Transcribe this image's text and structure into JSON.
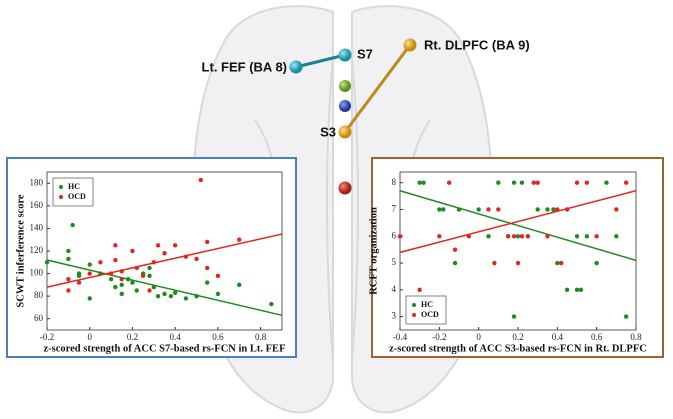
{
  "brain": {
    "labels": [
      "S7",
      "Lt. FEF (BA 8)",
      "Rt. DLPFC (BA 9)",
      "S3"
    ]
  },
  "chart_data": [
    {
      "type": "scatter",
      "xlabel": "z-scored strength of ACC S7-based rs-FCN in Lt. FEF",
      "ylabel": "SCWT inferference score",
      "xlim": [
        -0.2,
        0.9
      ],
      "xticks": [
        -0.2,
        0,
        0.2,
        0.4,
        0.6,
        0.8
      ],
      "ylim": [
        50,
        190
      ],
      "yticks": [
        60,
        80,
        100,
        120,
        140,
        160,
        180
      ],
      "legend": "upper left",
      "series": [
        {
          "name": "HC",
          "color": "#1f8a1f",
          "x": [
            -0.2,
            -0.1,
            -0.1,
            -0.05,
            -0.05,
            0,
            0,
            -0.08,
            0.05,
            0.1,
            0.12,
            0.15,
            0.15,
            0.18,
            0.2,
            0.22,
            0.25,
            0.28,
            0.28,
            0.3,
            0.32,
            0.35,
            0.38,
            0.4,
            0.45,
            0.5,
            0.55,
            0.6,
            0.7,
            0.85
          ],
          "values": [
            110,
            120,
            113,
            100,
            98,
            78,
            108,
            143,
            100,
            95,
            88,
            82,
            90,
            95,
            92,
            85,
            100,
            105,
            98,
            88,
            80,
            82,
            80,
            83,
            78,
            80,
            92,
            82,
            90,
            73
          ],
          "fit_x": [
            -0.2,
            0.9
          ],
          "fit_values": [
            112,
            63
          ]
        },
        {
          "name": "OCD",
          "color": "#e0261e",
          "x": [
            -0.1,
            -0.1,
            -0.05,
            0,
            0.05,
            0.1,
            0.12,
            0.15,
            0.15,
            0.2,
            0.22,
            0.25,
            0.28,
            0.3,
            0.32,
            0.35,
            0.4,
            0.45,
            0.5,
            0.52,
            0.55,
            0.55,
            0.6,
            0.7,
            0.12
          ],
          "values": [
            95,
            85,
            92,
            100,
            110,
            100,
            112,
            102,
            95,
            120,
            105,
            98,
            85,
            110,
            125,
            118,
            125,
            115,
            113,
            183,
            128,
            105,
            98,
            130,
            125
          ],
          "fit_x": [
            -0.2,
            0.9
          ],
          "fit_values": [
            88,
            135
          ]
        }
      ]
    },
    {
      "type": "scatter",
      "xlabel": "z-scored strength of ACC S3-based rs-FCN in Rt. DLPFC",
      "ylabel": "RCFT organization",
      "xlim": [
        -0.4,
        0.8
      ],
      "xticks": [
        -0.4,
        -0.2,
        0,
        0.2,
        0.4,
        0.6,
        0.8
      ],
      "ylim": [
        2.5,
        8.4
      ],
      "yticks": [
        3,
        4,
        5,
        6,
        7,
        8
      ],
      "legend": "lower left",
      "series": [
        {
          "name": "HC",
          "color": "#1f8a1f",
          "x": [
            -0.3,
            -0.28,
            -0.2,
            -0.18,
            -0.1,
            0,
            0.05,
            0.1,
            0.15,
            0.18,
            0.2,
            0.22,
            0.25,
            0.3,
            0.35,
            0.38,
            0.4,
            0.45,
            0.5,
            0.5,
            0.52,
            0.55,
            0.6,
            0.65,
            0.7,
            0.75,
            0.18,
            -0.12
          ],
          "values": [
            8,
            8,
            7,
            7,
            7,
            7,
            6,
            8,
            6,
            8,
            6,
            8,
            6,
            7,
            7,
            7,
            5,
            4,
            6,
            4,
            4,
            6,
            5,
            8,
            6,
            3,
            3,
            5
          ],
          "fit_x": [
            -0.4,
            0.8
          ],
          "fit_values": [
            7.7,
            5.1
          ]
        },
        {
          "name": "OCD",
          "color": "#e0261e",
          "x": [
            -0.4,
            -0.3,
            -0.2,
            -0.15,
            -0.12,
            -0.05,
            0.05,
            0.08,
            0.1,
            0.15,
            0.18,
            0.2,
            0.22,
            0.25,
            0.28,
            0.3,
            0.35,
            0.4,
            0.42,
            0.45,
            0.5,
            0.55,
            0.6,
            0.7,
            0.75
          ],
          "values": [
            6,
            4,
            6,
            8,
            5.5,
            6,
            7,
            5,
            7,
            6,
            6,
            5,
            6,
            6,
            8,
            8,
            6,
            7,
            5,
            7,
            8,
            8,
            6,
            7,
            8
          ],
          "fit_x": [
            -0.4,
            0.8
          ],
          "fit_values": [
            5.4,
            7.7
          ]
        }
      ]
    }
  ]
}
